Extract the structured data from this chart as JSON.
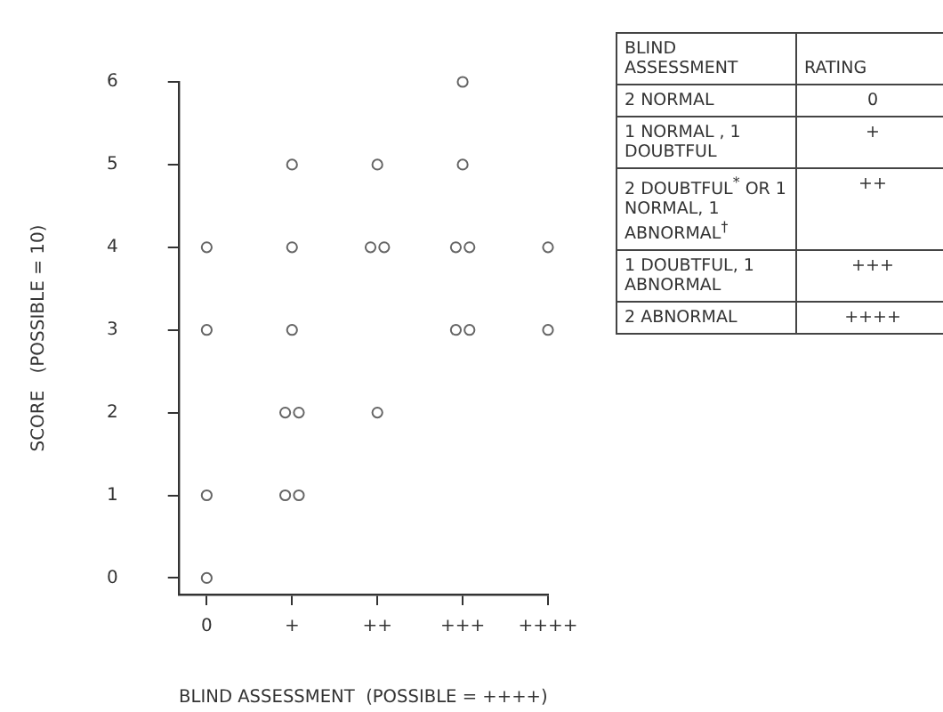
{
  "chart_data": [
    {
      "type": "scatter",
      "xlabel": "BLIND ASSESSMENT  (POSSIBLE = ++++)",
      "ylabel": "SCORE   (POSSIBLE = 10)",
      "marker": "circle",
      "categories": [
        "0",
        "+",
        "++",
        "+++",
        "++++"
      ],
      "series": [
        {
          "color": "#666666",
          "values": [
            4,
            5,
            5,
            6,
            4
          ]
        },
        {
          "color": "#666666",
          "values": [
            3,
            4,
            4,
            5,
            3
          ]
        },
        {
          "color": "#666666",
          "values": [
            1,
            3,
            4,
            4,
            null
          ]
        },
        {
          "color": "#666666",
          "values": [
            0,
            2,
            2,
            4,
            null
          ]
        },
        {
          "color": "#666666",
          "values": [
            null,
            2,
            null,
            3,
            null
          ]
        },
        {
          "color": "#666666",
          "values": [
            null,
            1,
            null,
            3,
            null
          ]
        },
        {
          "color": "#666666",
          "values": [
            null,
            1,
            null,
            null,
            null
          ]
        }
      ],
      "ylim": [
        -0.2,
        6
      ],
      "yticks": [
        0,
        1,
        2,
        3,
        4,
        5,
        6
      ]
    },
    {
      "type": "other",
      "annotations": [
        "BLIND ASSESSMENT",
        "RATING",
        "2 NORMAL",
        "0",
        "1 NORMAL , 1 DOUBTFUL",
        "+",
        "2 DOUBTFUL$^{*}$ OR 1 NORMAL, 1 ABNORMAL$^{†}$",
        "++",
        "1 DOUBTFUL, 1 ABNORMAL",
        "+++",
        "2 ABNORMAL",
        "++++"
      ]
    }
  ]
}
